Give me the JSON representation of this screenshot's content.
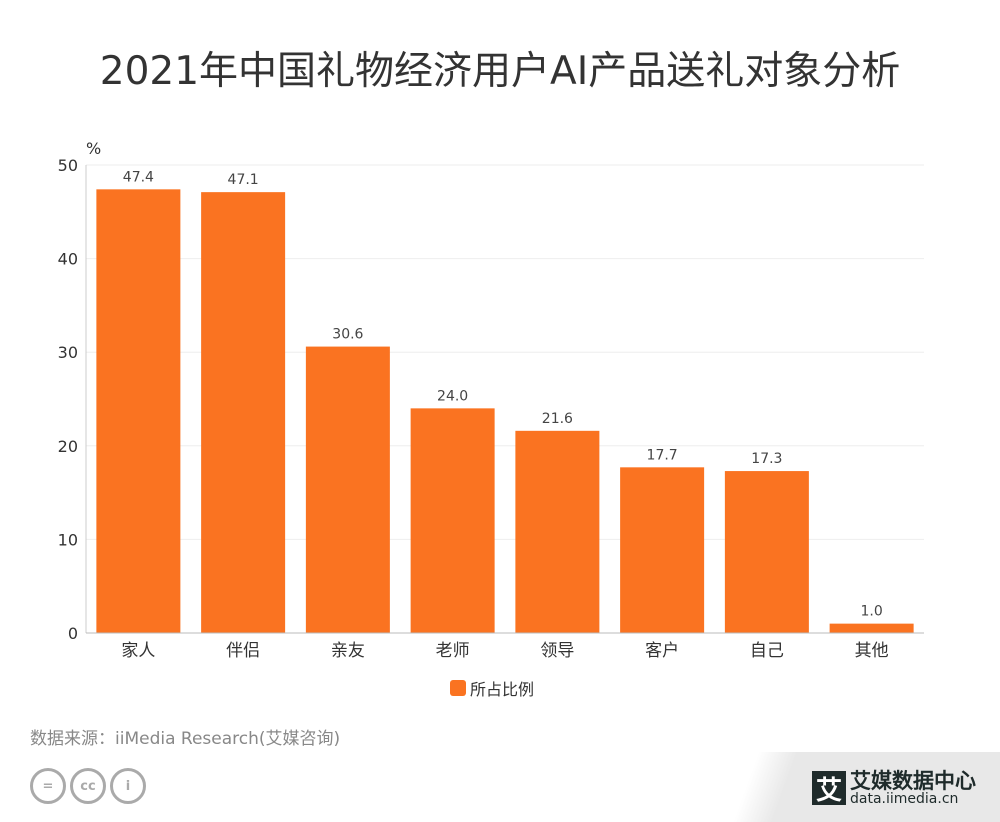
{
  "title": "2021年中国礼物经济用户AI产品送礼对象分析",
  "chart_data": {
    "type": "bar",
    "title": "2021年中国礼物经济用户AI产品送礼对象分析",
    "ylabel": "%",
    "xlabel": "",
    "ylim": [
      0,
      50
    ],
    "yticks": [
      0,
      10,
      20,
      30,
      40,
      50
    ],
    "grid": true,
    "legend_position": "bottom",
    "categories": [
      "家人",
      "伴侣",
      "亲友",
      "老师",
      "领导",
      "客户",
      "自己",
      "其他"
    ],
    "series": [
      {
        "name": "所占比例",
        "values": [
          47.4,
          47.1,
          30.6,
          24.0,
          21.6,
          17.7,
          17.3,
          1.0
        ],
        "color": "#FA7321"
      }
    ]
  },
  "source": "数据来源：iiMedia Research(艾媒咨询)",
  "license_icons": [
    "nd-icon",
    "cc-icon",
    "by-icon"
  ],
  "brand": {
    "logo_char": "艾",
    "name": "艾媒数据中心",
    "url": "data.iimedia.cn"
  }
}
